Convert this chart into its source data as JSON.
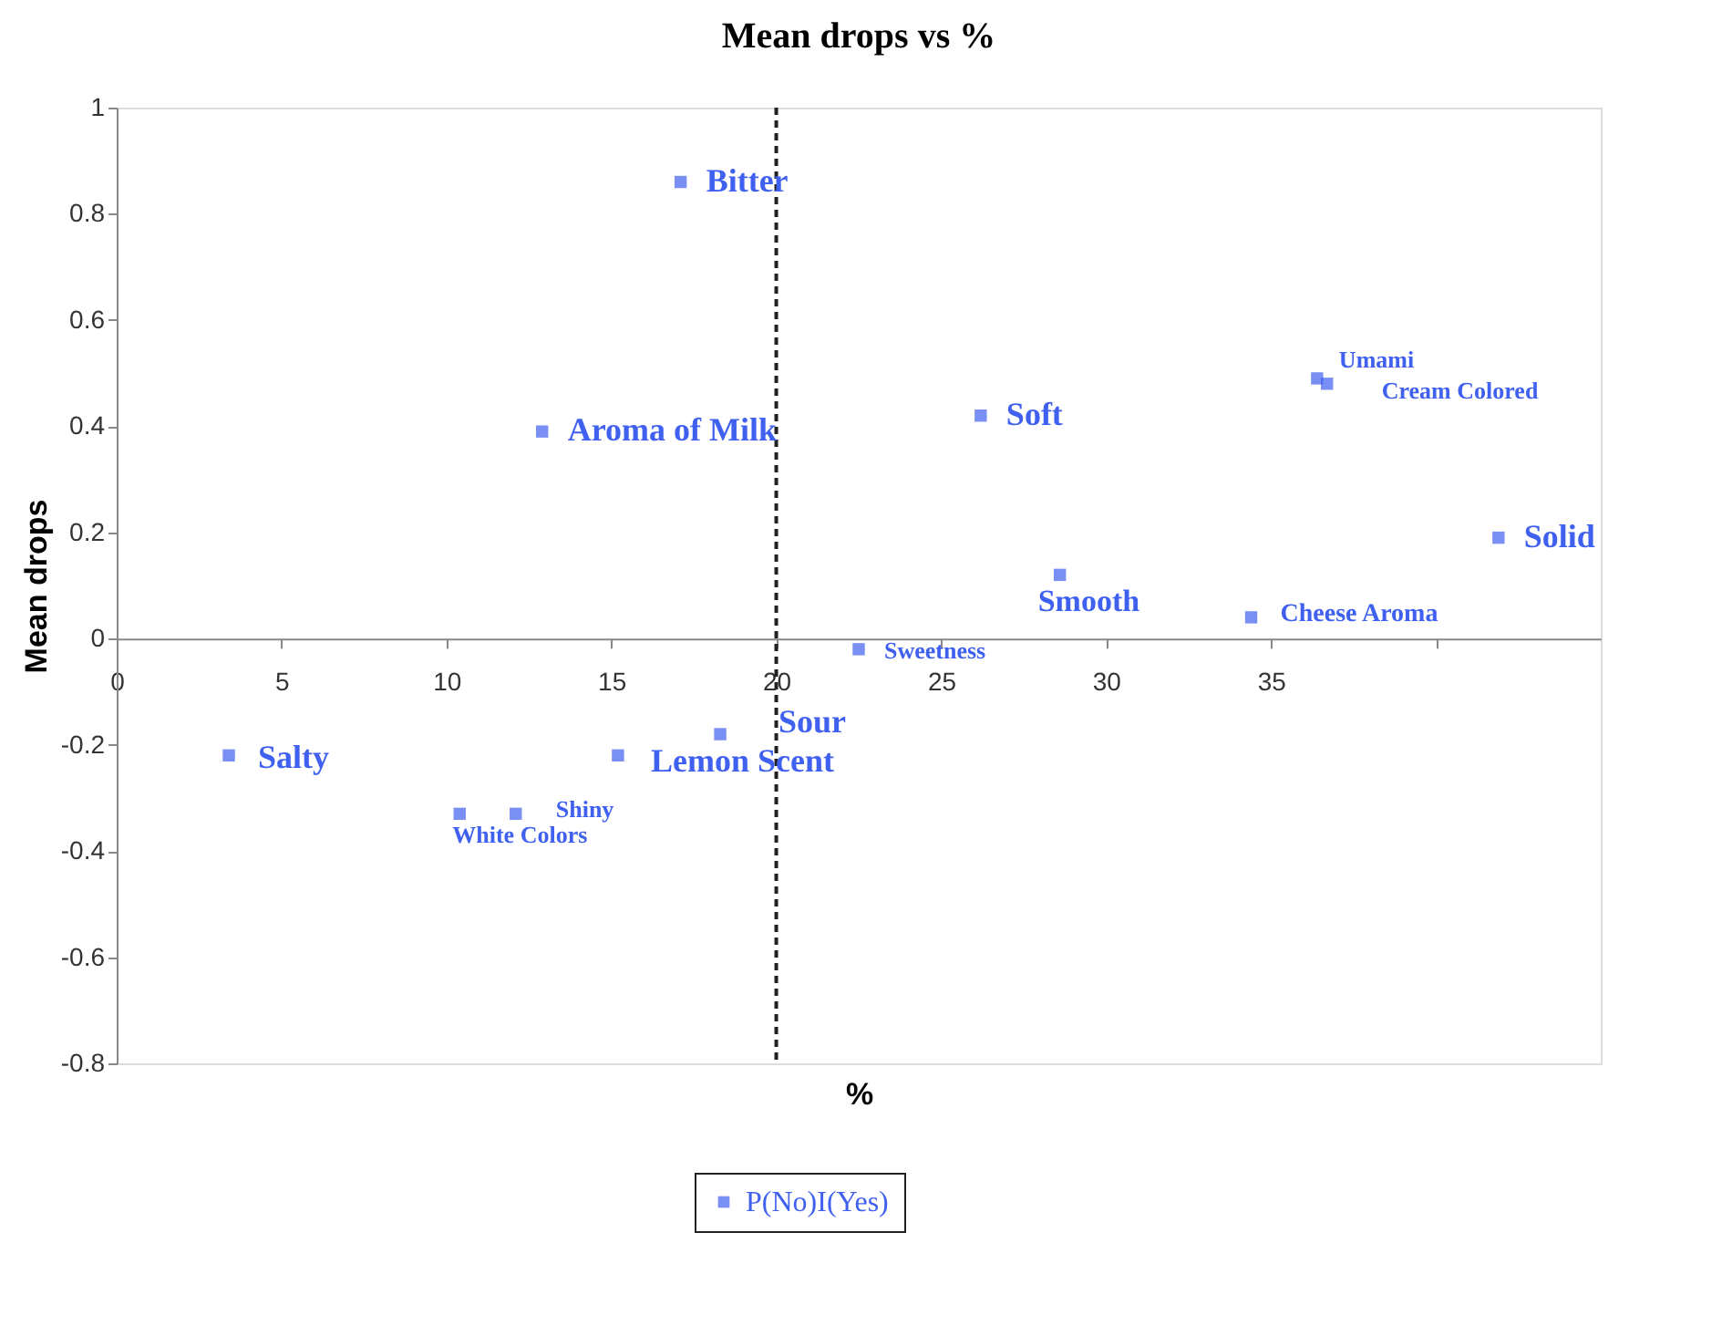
{
  "chart_data": {
    "type": "scatter",
    "title": "Mean drops vs %",
    "xlabel": "%",
    "ylabel": "Mean drops",
    "x": [
      17.1,
      12.9,
      26.2,
      36.4,
      36.7,
      41.9,
      28.6,
      34.4,
      22.5,
      3.4,
      15.2,
      18.3,
      10.4,
      12.1
    ],
    "series": [
      {
        "name": "P(No)I(Yes)",
        "color": "#4060f0",
        "values": [
          0.86,
          0.39,
          0.42,
          0.49,
          0.48,
          0.19,
          0.12,
          0.04,
          -0.02,
          -0.22,
          -0.22,
          -0.18,
          -0.33,
          -0.33
        ]
      }
    ],
    "annotations": [
      {
        "text": "Bitter",
        "x": 17.1,
        "y": 0.86
      },
      {
        "text": "Aroma of Milk",
        "x": 12.9,
        "y": 0.39
      },
      {
        "text": "Soft",
        "x": 26.2,
        "y": 0.42
      },
      {
        "text": "Umami",
        "x": 36.4,
        "y": 0.49
      },
      {
        "text": "Cream Colored",
        "x": 36.7,
        "y": 0.48
      },
      {
        "text": "Solid",
        "x": 41.9,
        "y": 0.19
      },
      {
        "text": "Smooth",
        "x": 28.6,
        "y": 0.12
      },
      {
        "text": "Cheese Aroma",
        "x": 34.4,
        "y": 0.04
      },
      {
        "text": "Sweetness",
        "x": 22.5,
        "y": -0.02
      },
      {
        "text": "Salty",
        "x": 3.4,
        "y": -0.22
      },
      {
        "text": "Lemon Scent",
        "x": 15.2,
        "y": -0.22
      },
      {
        "text": "Sour",
        "x": 18.3,
        "y": -0.18
      },
      {
        "text": "White Colors",
        "x": 10.4,
        "y": -0.33
      },
      {
        "text": "Shiny",
        "x": 12.1,
        "y": -0.33
      }
    ],
    "xlim": [
      0,
      45
    ],
    "xticks": [
      0,
      5,
      10,
      15,
      20,
      25,
      30,
      35,
      {
        "value": 40,
        "label": null
      }
    ],
    "ylim": [
      -0.8,
      1
    ],
    "yticks": [
      -0.8,
      -0.6,
      -0.4,
      -0.2,
      0,
      0.2,
      0.4,
      0.6,
      0.8,
      1
    ],
    "ref_lines": [
      {
        "axis": "x",
        "value": 20,
        "line_style": "dashed",
        "color": "#222222"
      }
    ],
    "marker": "square",
    "grid": false,
    "legend": "bottom"
  }
}
